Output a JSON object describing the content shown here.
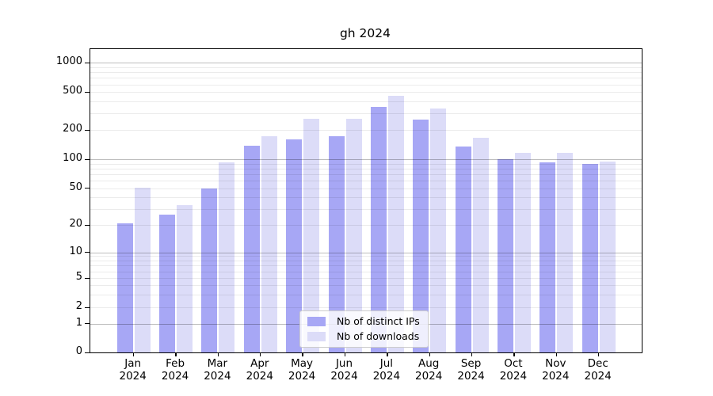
{
  "chart_data": {
    "type": "bar",
    "title": "gh 2024",
    "categories": [
      "Jan",
      "Feb",
      "Mar",
      "Apr",
      "May",
      "Jun",
      "Jul",
      "Aug",
      "Sep",
      "Oct",
      "Nov",
      "Dec"
    ],
    "x_year_label": "2024",
    "series": [
      {
        "name": "Nb of distinct IPs",
        "color": "#a7a7f5",
        "values": [
          21,
          26,
          50,
          139,
          161,
          174,
          353,
          258,
          135,
          100,
          93,
          89
        ]
      },
      {
        "name": "Nb of downloads",
        "color": "#dcdcf8",
        "values": [
          51,
          33,
          92,
          173,
          261,
          265,
          454,
          336,
          168,
          116,
          116,
          94
        ]
      }
    ],
    "xlabel": "",
    "ylabel": "",
    "yscale": "symlog",
    "yticks": [
      0,
      1,
      2,
      5,
      10,
      20,
      50,
      100,
      200,
      500,
      1000
    ],
    "ylim": [
      0,
      1390
    ],
    "grid": "on",
    "legend_position": "lower center"
  }
}
